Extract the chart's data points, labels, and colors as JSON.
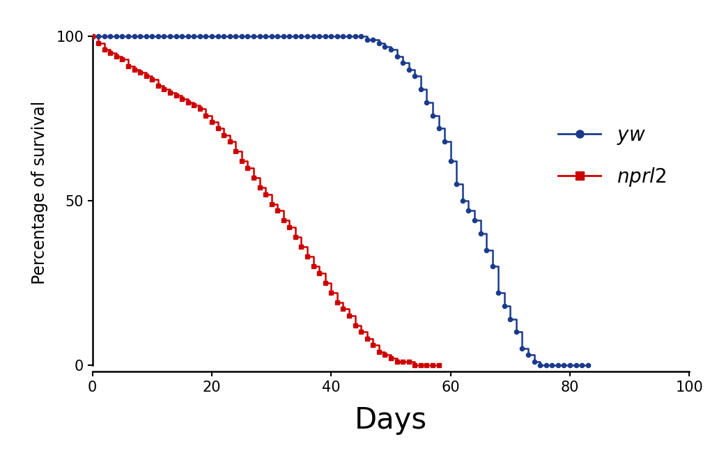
{
  "title": "",
  "xlabel": "Days",
  "ylabel": "Percentage of survival",
  "xlim": [
    0,
    100
  ],
  "ylim": [
    -2,
    107
  ],
  "xticks": [
    0,
    20,
    40,
    60,
    80,
    100
  ],
  "yticks": [
    0,
    50,
    100
  ],
  "background_color": "#ffffff",
  "line_color_yw": "#1a3a8c",
  "line_color_nprl2": "#cc0000",
  "marker_yw": "o",
  "marker_nprl2": "s",
  "xlabel_fontsize": 30,
  "ylabel_fontsize": 17,
  "tick_fontsize": 15,
  "legend_fontsize": 20,
  "yw_days": [
    0,
    1,
    2,
    3,
    4,
    5,
    6,
    7,
    8,
    9,
    10,
    11,
    12,
    13,
    14,
    15,
    16,
    17,
    18,
    19,
    20,
    21,
    22,
    23,
    24,
    25,
    26,
    27,
    28,
    29,
    30,
    31,
    32,
    33,
    34,
    35,
    36,
    37,
    38,
    39,
    40,
    41,
    42,
    43,
    44,
    45,
    46,
    47,
    48,
    49,
    50,
    51,
    52,
    53,
    54,
    55,
    56,
    57,
    58,
    59,
    60,
    61,
    62,
    63,
    64,
    65,
    66,
    67,
    68,
    69,
    70,
    71,
    72,
    73,
    74,
    75,
    76,
    77,
    78,
    79,
    80,
    81,
    82,
    83
  ],
  "yw_surv": [
    100,
    100,
    100,
    100,
    100,
    100,
    100,
    100,
    100,
    100,
    100,
    100,
    100,
    100,
    100,
    100,
    100,
    100,
    100,
    100,
    100,
    100,
    100,
    100,
    100,
    100,
    100,
    100,
    100,
    100,
    100,
    100,
    100,
    100,
    100,
    100,
    100,
    100,
    100,
    100,
    100,
    100,
    100,
    100,
    100,
    100,
    99,
    99,
    98,
    97,
    96,
    94,
    92,
    90,
    88,
    84,
    80,
    76,
    72,
    68,
    62,
    55,
    50,
    47,
    44,
    40,
    35,
    30,
    22,
    18,
    14,
    10,
    5,
    3,
    1,
    0,
    0,
    0,
    0,
    0,
    0,
    0,
    0,
    0
  ],
  "nprl2_days": [
    0,
    1,
    2,
    3,
    4,
    5,
    6,
    7,
    8,
    9,
    10,
    11,
    12,
    13,
    14,
    15,
    16,
    17,
    18,
    19,
    20,
    21,
    22,
    23,
    24,
    25,
    26,
    27,
    28,
    29,
    30,
    31,
    32,
    33,
    34,
    35,
    36,
    37,
    38,
    39,
    40,
    41,
    42,
    43,
    44,
    45,
    46,
    47,
    48,
    49,
    50,
    51,
    52,
    53,
    54,
    55,
    56,
    57,
    58
  ],
  "nprl2_surv": [
    100,
    98,
    96,
    95,
    94,
    93,
    91,
    90,
    89,
    88,
    87,
    85,
    84,
    83,
    82,
    81,
    80,
    79,
    78,
    76,
    74,
    72,
    70,
    68,
    65,
    62,
    60,
    57,
    54,
    52,
    49,
    47,
    44,
    42,
    39,
    36,
    33,
    30,
    28,
    25,
    22,
    19,
    17,
    15,
    12,
    10,
    8,
    6,
    4,
    3,
    2,
    1,
    1,
    1,
    0,
    0,
    0,
    0,
    0
  ]
}
